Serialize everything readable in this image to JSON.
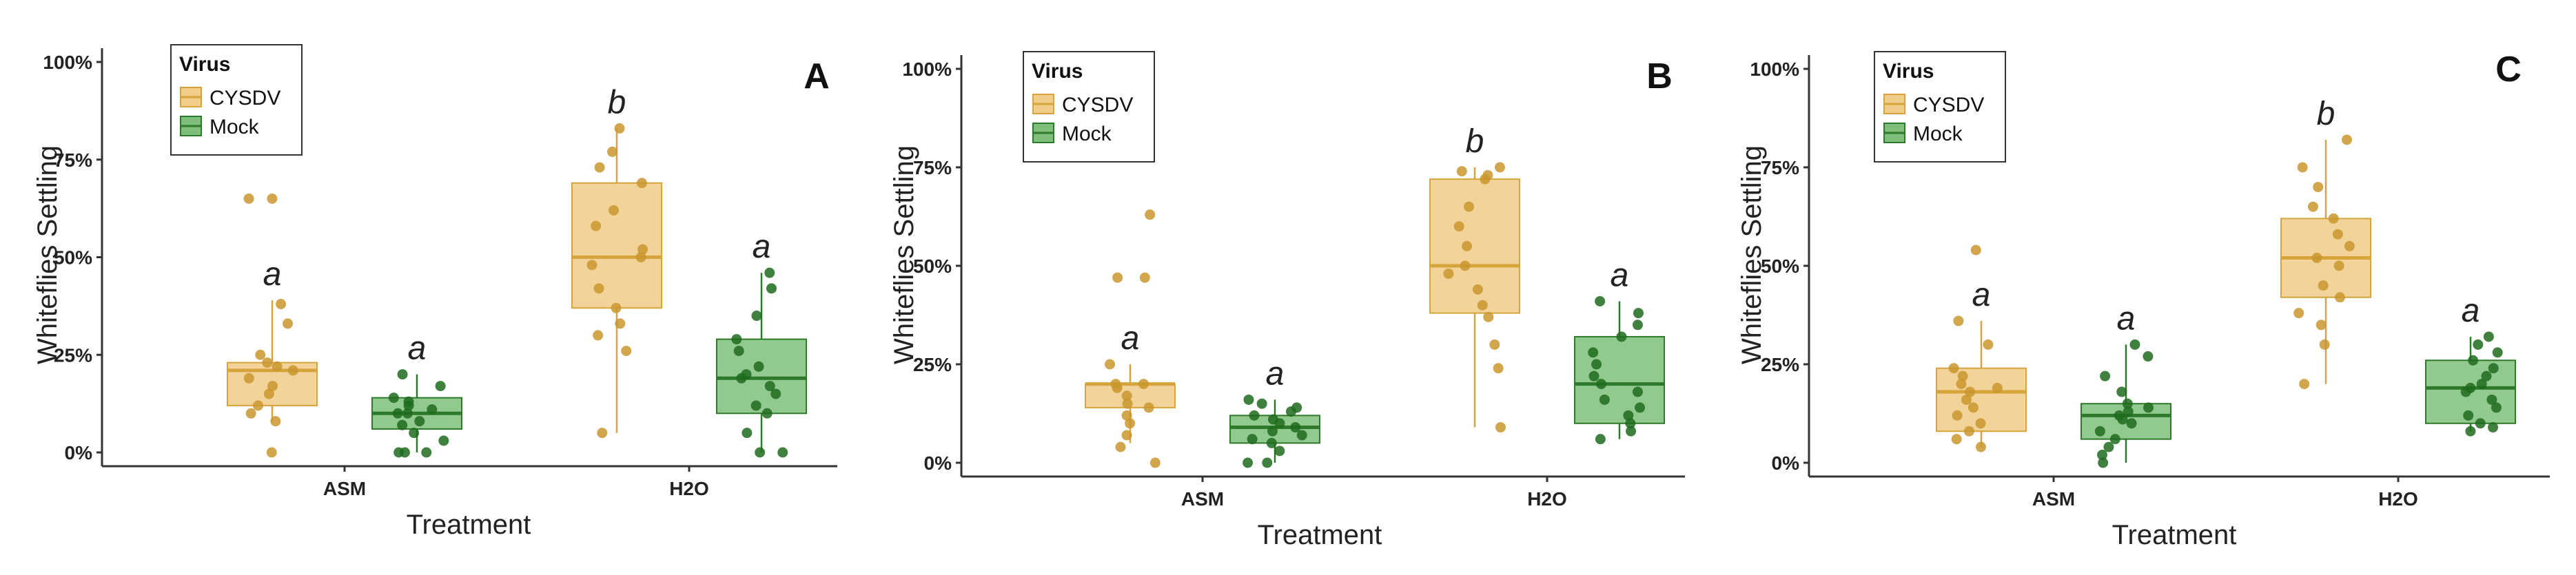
{
  "colors": {
    "CYSDV_fill": "#f0cd8a",
    "CYSDV_line": "#d7a43c",
    "CYSDV_point": "#c9962d",
    "Mock_fill": "#7fbf7a",
    "Mock_line": "#2d7a2a",
    "Mock_point": "#1f6b1f"
  },
  "chart_data": [
    {
      "type": "boxplot",
      "panel_label": "A",
      "ylabel": "Whiteflies Settling",
      "xlabel": "Treatment",
      "categories": [
        "ASM",
        "H2O"
      ],
      "yticks": [
        "0%",
        "25%",
        "50%",
        "75%",
        "100%"
      ],
      "ylim": [
        0,
        100
      ],
      "legend": {
        "title": "Virus",
        "entries": [
          "CYSDV",
          "Mock"
        ]
      },
      "series": [
        {
          "name": "CYSDV",
          "boxes": [
            {
              "category": "ASM",
              "whisker_low": 8,
              "q1": 12,
              "median": 21,
              "q3": 23,
              "whisker_high": 39,
              "letter": "a",
              "points": [
                0,
                8,
                10,
                12,
                15,
                17,
                19,
                21,
                22,
                23,
                25,
                33,
                38,
                65,
                65
              ]
            },
            {
              "category": "H2O",
              "whisker_low": 5,
              "q1": 37,
              "median": 50,
              "q3": 69,
              "whisker_high": 83,
              "letter": "b",
              "points": [
                5,
                26,
                30,
                33,
                37,
                42,
                48,
                50,
                52,
                58,
                62,
                69,
                73,
                77,
                83
              ]
            }
          ]
        },
        {
          "name": "Mock",
          "boxes": [
            {
              "category": "ASM",
              "whisker_low": 0,
              "q1": 6,
              "median": 10,
              "q3": 14,
              "whisker_high": 20,
              "letter": "a",
              "points": [
                0,
                0,
                0,
                3,
                5,
                7,
                8,
                10,
                10,
                11,
                12,
                13,
                14,
                17,
                20
              ]
            },
            {
              "category": "H2O",
              "whisker_low": 0,
              "q1": 10,
              "median": 19,
              "q3": 29,
              "whisker_high": 46,
              "letter": "a",
              "points": [
                0,
                0,
                5,
                10,
                12,
                15,
                17,
                19,
                20,
                22,
                26,
                29,
                35,
                42,
                46
              ]
            }
          ]
        }
      ]
    },
    {
      "type": "boxplot",
      "panel_label": "B",
      "ylabel": "Whiteflies Settling",
      "xlabel": "Treatment",
      "categories": [
        "ASM",
        "H2O"
      ],
      "yticks": [
        "0%",
        "25%",
        "50%",
        "75%",
        "100%"
      ],
      "ylim": [
        0,
        100
      ],
      "legend": {
        "title": "Virus",
        "entries": [
          "CYSDV",
          "Mock"
        ]
      },
      "series": [
        {
          "name": "CYSDV",
          "boxes": [
            {
              "category": "ASM",
              "whisker_low": 5,
              "q1": 14,
              "median": 20,
              "q3": 20,
              "whisker_high": 25,
              "letter": "a",
              "points": [
                0,
                4,
                7,
                10,
                12,
                14,
                15,
                17,
                19,
                20,
                20,
                25,
                47,
                47,
                63
              ]
            },
            {
              "category": "H2O",
              "whisker_low": 9,
              "q1": 38,
              "median": 50,
              "q3": 72,
              "whisker_high": 75,
              "letter": "b",
              "points": [
                9,
                24,
                30,
                37,
                40,
                44,
                48,
                50,
                55,
                60,
                65,
                72,
                73,
                74,
                75
              ]
            }
          ]
        },
        {
          "name": "Mock",
          "boxes": [
            {
              "category": "ASM",
              "whisker_low": 0,
              "q1": 5,
              "median": 9,
              "q3": 12,
              "whisker_high": 16,
              "letter": "a",
              "points": [
                0,
                0,
                3,
                5,
                6,
                7,
                8,
                9,
                10,
                11,
                12,
                13,
                14,
                15,
                16
              ]
            },
            {
              "category": "H2O",
              "whisker_low": 6,
              "q1": 10,
              "median": 20,
              "q3": 32,
              "whisker_high": 41,
              "letter": "a",
              "points": [
                6,
                8,
                10,
                12,
                14,
                16,
                18,
                20,
                22,
                25,
                28,
                32,
                35,
                38,
                41
              ]
            }
          ]
        }
      ]
    },
    {
      "type": "boxplot",
      "panel_label": "C",
      "ylabel": "Whiteflies Settling",
      "xlabel": "Treatment",
      "categories": [
        "ASM",
        "H2O"
      ],
      "yticks": [
        "0%",
        "25%",
        "50%",
        "75%",
        "100%"
      ],
      "ylim": [
        0,
        100
      ],
      "legend": {
        "title": "Virus",
        "entries": [
          "CYSDV",
          "Mock"
        ]
      },
      "series": [
        {
          "name": "CYSDV",
          "boxes": [
            {
              "category": "ASM",
              "whisker_low": 4,
              "q1": 8,
              "median": 18,
              "q3": 24,
              "whisker_high": 36,
              "letter": "a",
              "points": [
                4,
                6,
                8,
                10,
                12,
                14,
                16,
                18,
                19,
                20,
                22,
                24,
                30,
                36,
                54
              ]
            },
            {
              "category": "H2O",
              "whisker_low": 20,
              "q1": 42,
              "median": 52,
              "q3": 62,
              "whisker_high": 82,
              "letter": "b",
              "points": [
                20,
                30,
                35,
                38,
                42,
                45,
                50,
                52,
                55,
                58,
                62,
                65,
                70,
                75,
                82
              ]
            }
          ]
        },
        {
          "name": "Mock",
          "boxes": [
            {
              "category": "ASM",
              "whisker_low": 0,
              "q1": 6,
              "median": 12,
              "q3": 15,
              "whisker_high": 30,
              "letter": "a",
              "points": [
                0,
                2,
                4,
                6,
                8,
                10,
                11,
                12,
                13,
                14,
                15,
                18,
                22,
                27,
                30
              ]
            },
            {
              "category": "H2O",
              "whisker_low": 8,
              "q1": 10,
              "median": 19,
              "q3": 26,
              "whisker_high": 32,
              "letter": "a",
              "points": [
                8,
                9,
                10,
                12,
                14,
                16,
                18,
                19,
                20,
                22,
                24,
                26,
                28,
                30,
                32
              ]
            }
          ]
        }
      ]
    }
  ]
}
